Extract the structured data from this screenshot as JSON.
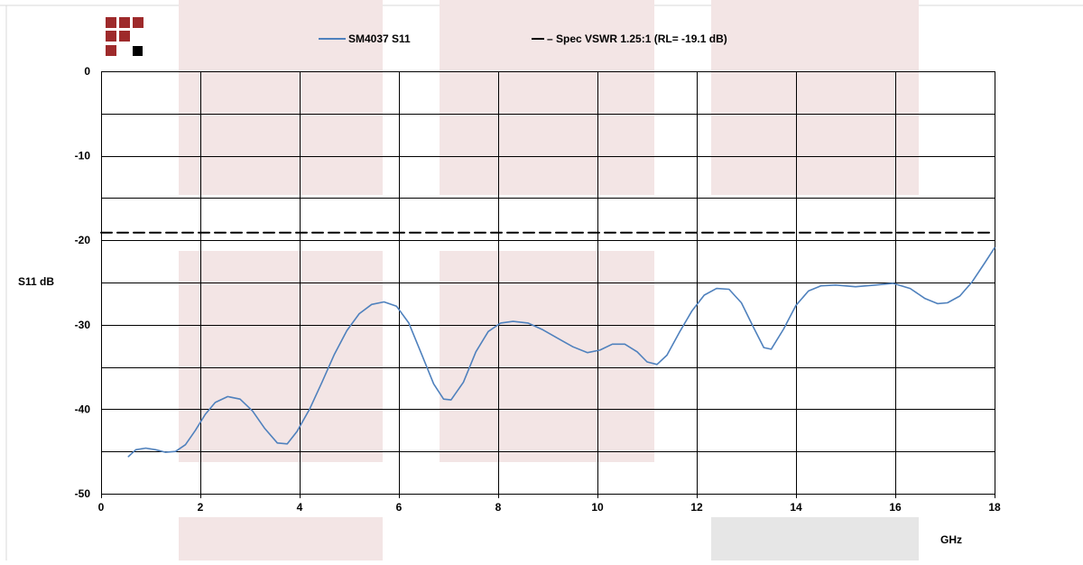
{
  "chart_data": {
    "type": "line",
    "title": "",
    "xlabel": "GHz",
    "ylabel": "S11 dB",
    "xlim": [
      0,
      18
    ],
    "ylim": [
      -50,
      0
    ],
    "x_ticks": [
      0,
      2,
      4,
      6,
      8,
      10,
      12,
      14,
      16,
      18
    ],
    "y_ticks": [
      0,
      -10,
      -20,
      -30,
      -40,
      -50
    ],
    "y_minor_gridlines": [
      -5,
      -15,
      -25,
      -35,
      -45
    ],
    "grid": true,
    "legend_placement": "top",
    "series": [
      {
        "name": "SM4037 S11",
        "style": "solid",
        "color": "#4f81bd",
        "points": [
          [
            0.55,
            -45.6
          ],
          [
            0.7,
            -44.8
          ],
          [
            0.9,
            -44.6
          ],
          [
            1.1,
            -44.8
          ],
          [
            1.3,
            -45.1
          ],
          [
            1.5,
            -45.0
          ],
          [
            1.7,
            -44.2
          ],
          [
            1.9,
            -42.5
          ],
          [
            2.1,
            -40.6
          ],
          [
            2.3,
            -39.2
          ],
          [
            2.55,
            -38.5
          ],
          [
            2.8,
            -38.8
          ],
          [
            3.05,
            -40.2
          ],
          [
            3.3,
            -42.3
          ],
          [
            3.55,
            -44.0
          ],
          [
            3.75,
            -44.1
          ],
          [
            3.95,
            -42.6
          ],
          [
            4.2,
            -40.0
          ],
          [
            4.45,
            -36.8
          ],
          [
            4.7,
            -33.5
          ],
          [
            4.95,
            -30.7
          ],
          [
            5.2,
            -28.7
          ],
          [
            5.45,
            -27.6
          ],
          [
            5.7,
            -27.3
          ],
          [
            5.95,
            -27.8
          ],
          [
            6.2,
            -29.8
          ],
          [
            6.45,
            -33.4
          ],
          [
            6.7,
            -37.0
          ],
          [
            6.9,
            -38.8
          ],
          [
            7.05,
            -38.9
          ],
          [
            7.3,
            -36.8
          ],
          [
            7.55,
            -33.2
          ],
          [
            7.8,
            -30.8
          ],
          [
            8.05,
            -29.8
          ],
          [
            8.3,
            -29.6
          ],
          [
            8.6,
            -29.8
          ],
          [
            8.9,
            -30.6
          ],
          [
            9.2,
            -31.6
          ],
          [
            9.5,
            -32.6
          ],
          [
            9.8,
            -33.3
          ],
          [
            10.05,
            -33.0
          ],
          [
            10.3,
            -32.3
          ],
          [
            10.55,
            -32.3
          ],
          [
            10.8,
            -33.2
          ],
          [
            11.0,
            -34.4
          ],
          [
            11.2,
            -34.7
          ],
          [
            11.4,
            -33.6
          ],
          [
            11.65,
            -30.9
          ],
          [
            11.9,
            -28.4
          ],
          [
            12.15,
            -26.5
          ],
          [
            12.4,
            -25.7
          ],
          [
            12.65,
            -25.8
          ],
          [
            12.9,
            -27.4
          ],
          [
            13.15,
            -30.4
          ],
          [
            13.35,
            -32.7
          ],
          [
            13.5,
            -32.9
          ],
          [
            13.75,
            -30.5
          ],
          [
            14.0,
            -27.7
          ],
          [
            14.25,
            -26.0
          ],
          [
            14.5,
            -25.4
          ],
          [
            14.8,
            -25.3
          ],
          [
            15.2,
            -25.5
          ],
          [
            15.6,
            -25.3
          ],
          [
            15.95,
            -25.1
          ],
          [
            16.3,
            -25.7
          ],
          [
            16.6,
            -26.9
          ],
          [
            16.85,
            -27.5
          ],
          [
            17.05,
            -27.4
          ],
          [
            17.3,
            -26.6
          ],
          [
            17.55,
            -24.9
          ],
          [
            17.8,
            -22.7
          ],
          [
            18.0,
            -20.9
          ]
        ]
      },
      {
        "name": "Spec VSWR 1.25:1 (RL= -19.1 dB)",
        "style": "dashed",
        "color": "#000000",
        "points": [
          [
            0,
            -19.1
          ],
          [
            18,
            -19.1
          ]
        ]
      }
    ],
    "legend": [
      {
        "label": "SM4037 S11",
        "style": "solid",
        "color": "#4f81bd"
      },
      {
        "label": "– Spec VSWR 1.25:1 (RL= -19.1 dB)",
        "style": "dashed",
        "color": "#000000"
      }
    ]
  },
  "colors": {
    "logo_red": "#9e2a2b",
    "logo_black": "#000000",
    "watermark_pink": "#f3e5e5",
    "watermark_gray": "#e6e6e6",
    "grid": "#000000"
  },
  "icons": {
    "logo": "company-logo-icon"
  }
}
